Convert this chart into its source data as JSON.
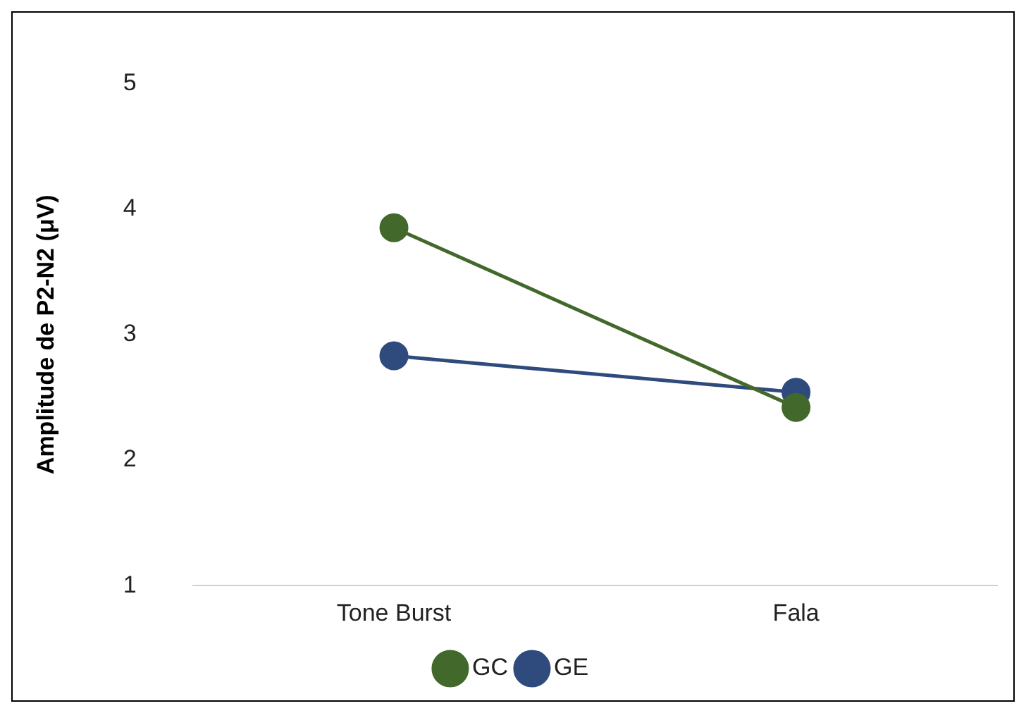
{
  "chart_data": {
    "type": "line",
    "ylabel": "Amplitude de P2-N2 (μV)",
    "categories": [
      "Tone Burst",
      "Fala"
    ],
    "series": [
      {
        "name": "GC",
        "color": "#43682b",
        "values": [
          3.85,
          2.42
        ]
      },
      {
        "name": "GE",
        "color": "#2f4a7c",
        "values": [
          2.83,
          2.54
        ]
      }
    ],
    "ylim": [
      1,
      5
    ],
    "yticks": [
      1,
      2,
      3,
      4,
      5
    ],
    "grid": false,
    "legend": "bottom",
    "marker": "circle",
    "line_style": "solid"
  }
}
